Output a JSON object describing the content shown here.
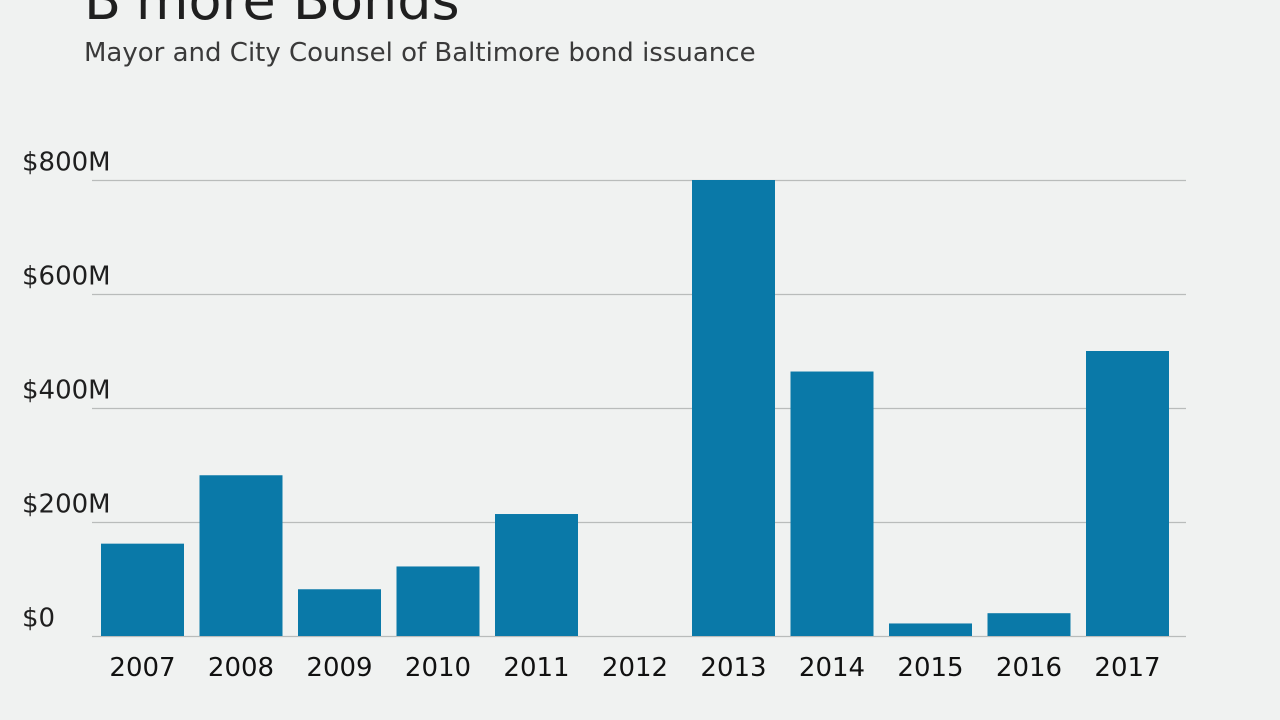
{
  "title": "B'more Bonds",
  "subtitle": "Mayor and City Counsel of Baltimore bond issuance",
  "colors": {
    "bar": "#0a79a8",
    "grid": "#b9bcbb",
    "background": "#f0f2f1"
  },
  "chart_data": {
    "type": "bar",
    "title": "B'more Bonds",
    "subtitle": "Mayor and City Counsel of Baltimore bond issuance",
    "xlabel": "",
    "ylabel": "",
    "categories": [
      "2007",
      "2008",
      "2009",
      "2010",
      "2011",
      "2012",
      "2013",
      "2014",
      "2015",
      "2016",
      "2017"
    ],
    "values": [
      162,
      282,
      82,
      122,
      214,
      0,
      800,
      464,
      22,
      40,
      500
    ],
    "units": "$M",
    "ylim": [
      0,
      800
    ],
    "yticks": [
      0,
      200,
      400,
      600,
      800
    ],
    "ytick_labels": [
      "$0",
      "$200M",
      "$400M",
      "$600M",
      "$800M"
    ],
    "grid": true,
    "legend": "none"
  }
}
